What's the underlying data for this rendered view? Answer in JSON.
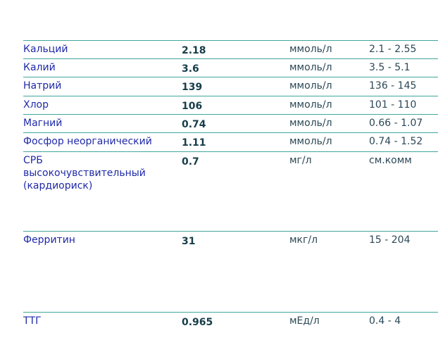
{
  "table": {
    "rows": [
      [
        "Кальций",
        "2.18",
        "ммоль/л",
        "2.1 - 2.55"
      ],
      [
        "Калий",
        "3.6",
        "ммоль/л",
        "3.5 - 5.1"
      ],
      [
        "Натрий",
        "139",
        "ммоль/л",
        "136 - 145"
      ],
      [
        "Хлор",
        "106",
        "ммоль/л",
        "101 - 110"
      ],
      [
        "Магний",
        "0.74",
        "ммоль/л",
        "0.66 - 1.07"
      ],
      [
        "Фосфор неорганический",
        "1.11",
        "ммоль/л",
        "0.74 - 1.52"
      ],
      [
        "СРБ\nвысокочувствительный\n(кардиориск)",
        "0.7",
        "мг/л",
        "см.комм"
      ],
      [
        "Ферритин",
        "31",
        "мкг/л",
        "15 - 204"
      ],
      [
        "ТТГ",
        "0.965",
        "мЕд/л",
        "0.4 - 4"
      ]
    ]
  }
}
